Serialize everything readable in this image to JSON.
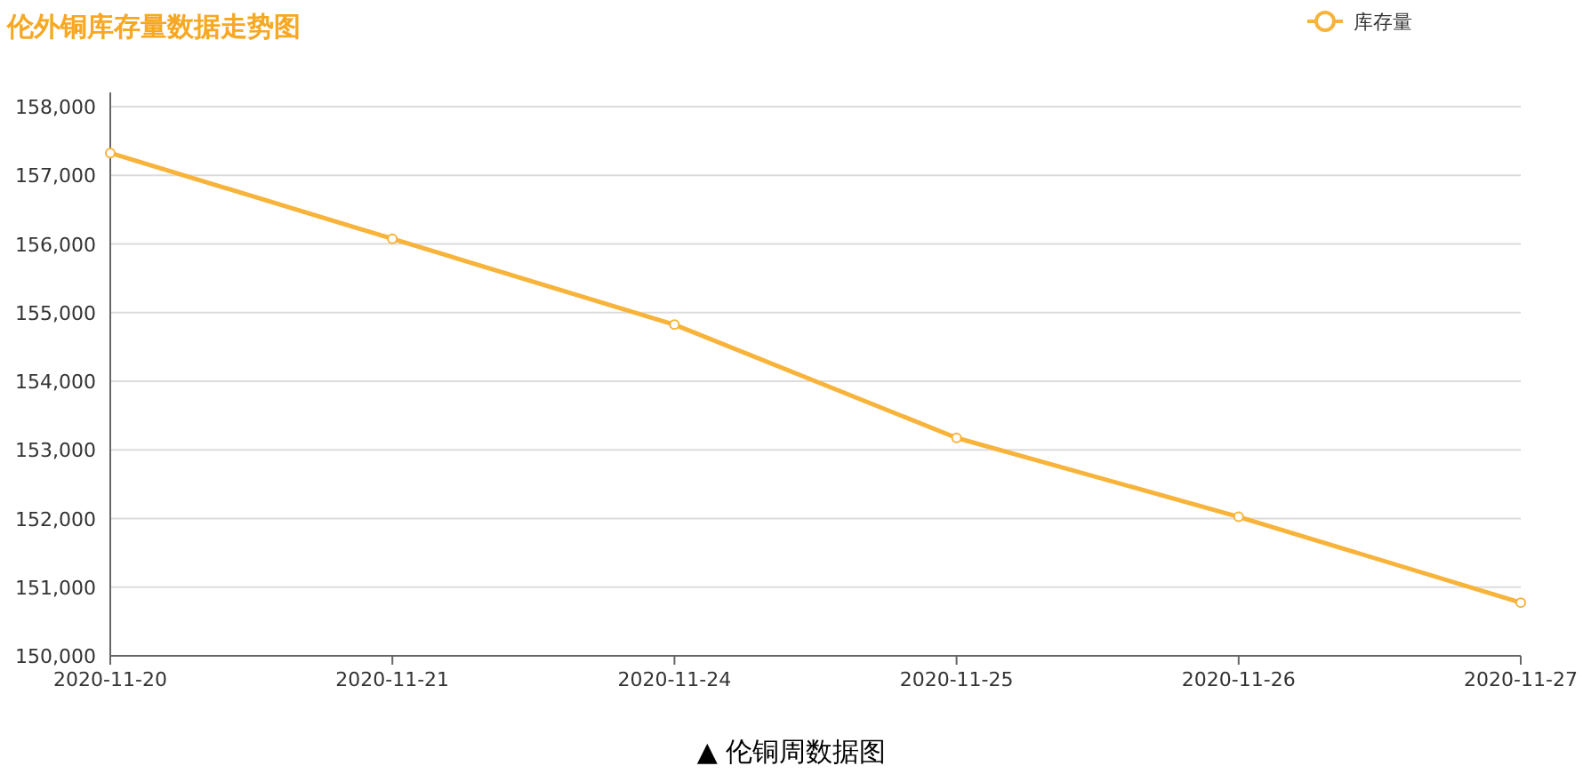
{
  "chart_data": {
    "type": "line",
    "title": "伦外铜库存量数据走势图",
    "categories": [
      "2020-11-20",
      "2020-11-21",
      "2020-11-24",
      "2020-11-25",
      "2020-11-26",
      "2020-11-27"
    ],
    "series": [
      {
        "name": "库存量",
        "color": "#f7b33a",
        "values": [
          157325,
          156075,
          154825,
          153175,
          152025,
          150775
        ]
      }
    ],
    "ylim": [
      150000,
      158000
    ],
    "yticks": [
      {
        "value": 150000,
        "label": "150,000"
      },
      {
        "value": 151000,
        "label": "151,000"
      },
      {
        "value": 152000,
        "label": "152,000"
      },
      {
        "value": 153000,
        "label": "153,000"
      },
      {
        "value": 154000,
        "label": "154,000"
      },
      {
        "value": 155000,
        "label": "155,000"
      },
      {
        "value": 156000,
        "label": "156,000"
      },
      {
        "value": 157000,
        "label": "157,000"
      },
      {
        "value": 158000,
        "label": "158,000"
      }
    ],
    "grid": "y",
    "legend": "top right",
    "marker": "circle",
    "annotations": [
      "▲ 伦铜周数据图"
    ]
  }
}
